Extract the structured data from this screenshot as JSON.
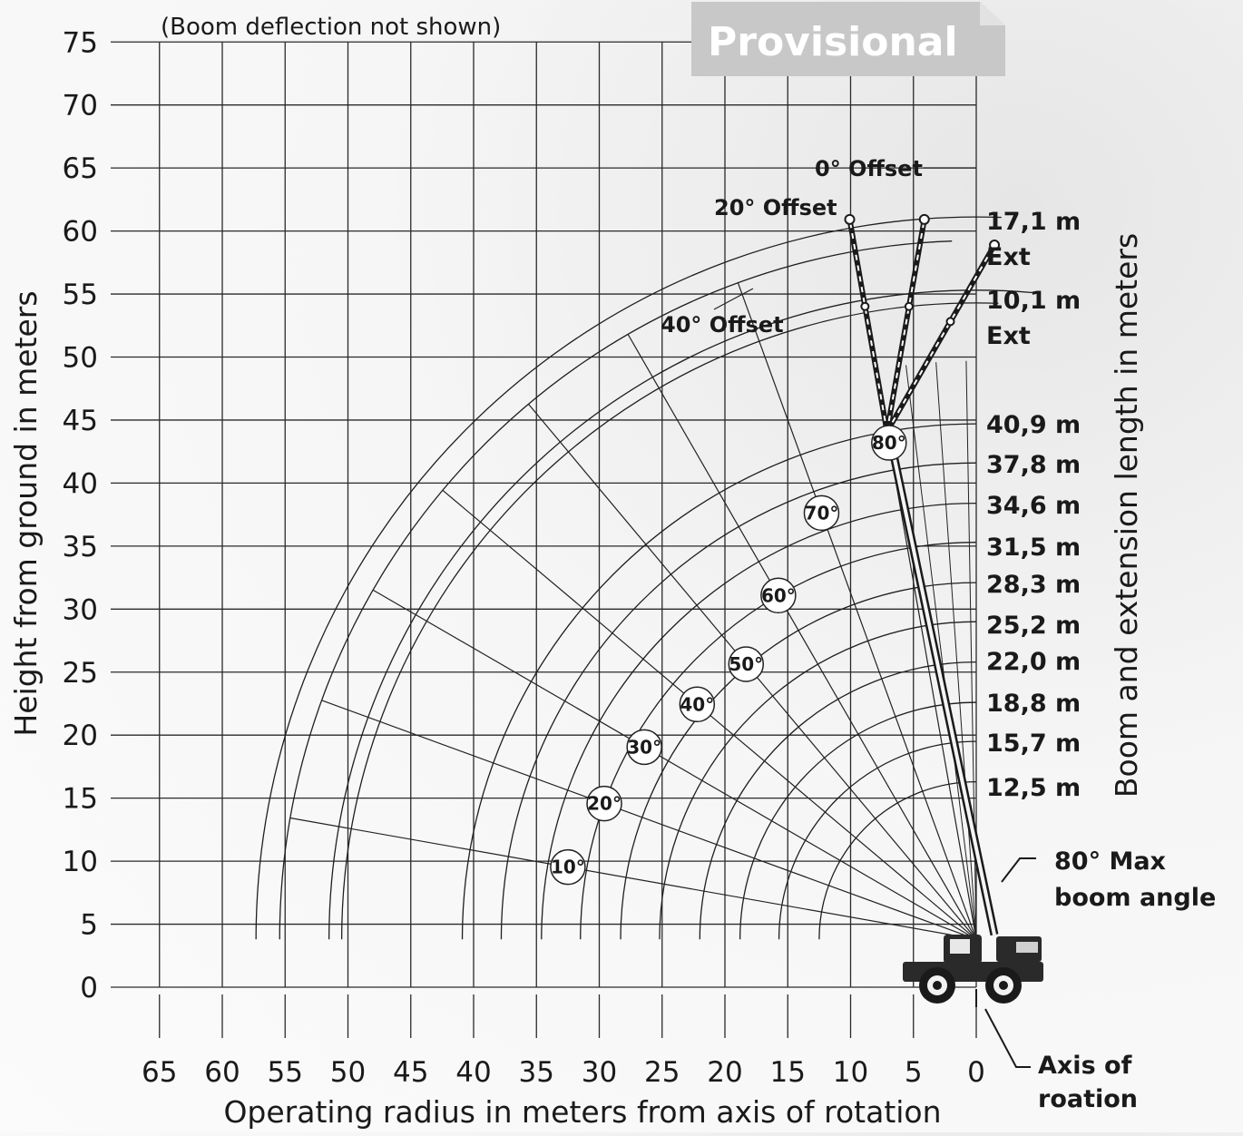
{
  "chart_data": {
    "type": "range-chart",
    "note": "(Boom deflection not shown)",
    "badge": "Provisional",
    "xlabel": "Operating radius in meters from axis of rotation",
    "ylabel": "Height from ground in meters",
    "y2label": "Boom and extension length in meters",
    "xlim": [
      65,
      0
    ],
    "ylim": [
      0,
      75
    ],
    "x_ticks": [
      65,
      60,
      55,
      50,
      45,
      40,
      35,
      30,
      25,
      20,
      15,
      10,
      5,
      0
    ],
    "y_ticks": [
      0,
      5,
      10,
      15,
      20,
      25,
      30,
      35,
      40,
      45,
      50,
      55,
      60,
      65,
      70,
      75
    ],
    "pivot_height": 3.8,
    "boom_lengths": [
      {
        "label": "12,5 m",
        "value": 12.5
      },
      {
        "label": "15,7 m",
        "value": 15.7
      },
      {
        "label": "18,8 m",
        "value": 18.8
      },
      {
        "label": "22,0 m",
        "value": 22.0
      },
      {
        "label": "25,2 m",
        "value": 25.2
      },
      {
        "label": "28,3 m",
        "value": 28.3
      },
      {
        "label": "31,5 m",
        "value": 31.5
      },
      {
        "label": "34,6 m",
        "value": 34.6
      },
      {
        "label": "37,8 m",
        "value": 37.8
      },
      {
        "label": "40,9 m",
        "value": 40.9
      }
    ],
    "extensions": [
      {
        "label": "10,1 m",
        "label2": "Ext",
        "value": 10.1
      },
      {
        "label": "17,1 m",
        "label2": "Ext",
        "value": 17.1
      }
    ],
    "boom_angles": [
      {
        "label": "10°",
        "value": 10
      },
      {
        "label": "20°",
        "value": 20
      },
      {
        "label": "30°",
        "value": 30
      },
      {
        "label": "40°",
        "value": 40
      },
      {
        "label": "50°",
        "value": 50
      },
      {
        "label": "60°",
        "value": 60
      },
      {
        "label": "70°",
        "value": 70
      },
      {
        "label": "80°",
        "value": 80
      }
    ],
    "offsets": [
      {
        "label": "0° Offset",
        "value": 0
      },
      {
        "label": "20° Offset",
        "value": 20
      },
      {
        "label": "40° Offset",
        "value": 40
      }
    ],
    "annotations": {
      "max_angle_line1": "80° Max",
      "max_angle_line2": "boom angle",
      "axis_line1": "Axis of",
      "axis_line2": "roation"
    }
  }
}
